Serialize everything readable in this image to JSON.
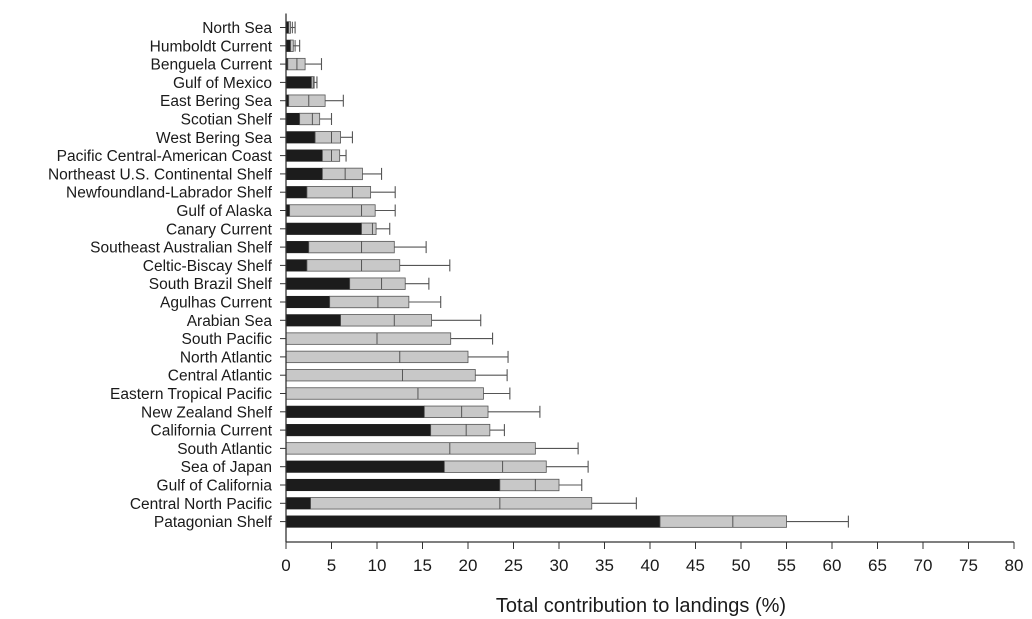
{
  "chart_data": {
    "type": "bar",
    "orientation": "horizontal",
    "stacked": true,
    "xlabel": "Total contribution to landings (%)",
    "ylabel": "",
    "xlim": [
      0,
      80
    ],
    "xticks": [
      0,
      5,
      10,
      15,
      20,
      25,
      30,
      35,
      40,
      45,
      50,
      55,
      60,
      65,
      70,
      75,
      80
    ],
    "grid": false,
    "legend": "none",
    "colors": {
      "dark": "#1c1c1c",
      "light": "#c8c8c8",
      "edge": "#555555",
      "axis": "#333333"
    },
    "categories": [
      "North Sea",
      "Humboldt Current",
      "Benguela Current",
      "Gulf of Mexico",
      "East Bering Sea",
      "Scotian Shelf",
      "West Bering Sea",
      "Pacific Central-American Coast",
      "Northeast U.S. Continental Shelf",
      "Newfoundland-Labrador Shelf",
      "Gulf of Alaska",
      "Canary Current",
      "Southeast Australian Shelf",
      "Celtic-Biscay Shelf",
      "South Brazil Shelf",
      "Agulhas Current",
      "Arabian Sea",
      "South Pacific",
      "North Atlantic",
      "Central Atlantic",
      "Eastern Tropical Pacific",
      "New Zealand Shelf",
      "California Current",
      "South Atlantic",
      "Sea of Japan",
      "Gulf of California",
      "Central North Pacific",
      "Patagonian Shelf"
    ],
    "series": [
      {
        "values": [
          0.3,
          0.5,
          0.2,
          2.8,
          0.3,
          1.5,
          3.2,
          4.0,
          4.0,
          2.3,
          0.4,
          8.3,
          2.5,
          2.3,
          7.0,
          4.8,
          6.0,
          0,
          0,
          0,
          0,
          15.2,
          15.9,
          0,
          17.4,
          23.5,
          2.7,
          41.1
        ]
      },
      {
        "values": [
          0.2,
          0.3,
          1.9,
          0.3,
          4.0,
          2.2,
          2.8,
          1.9,
          4.4,
          7.0,
          9.4,
          1.6,
          9.4,
          10.2,
          6.1,
          8.7,
          10.0,
          18.1,
          20.0,
          20.8,
          21.7,
          7.0,
          6.5,
          27.4,
          11.2,
          6.5,
          30.9,
          13.9
        ]
      }
    ],
    "totals": [
      0.5,
      0.8,
      2.1,
      3.1,
      4.3,
      3.7,
      6.0,
      5.9,
      8.4,
      9.3,
      9.8,
      9.9,
      11.9,
      12.5,
      13.1,
      13.5,
      16.0,
      18.1,
      20.0,
      20.8,
      21.7,
      22.2,
      22.4,
      27.4,
      28.6,
      30.0,
      33.6,
      55.0
    ],
    "inner_marks": [
      0.7,
      1.0,
      1.2,
      3.0,
      2.5,
      2.9,
      5.0,
      5.0,
      6.5,
      7.3,
      8.3,
      9.5,
      8.3,
      8.3,
      10.5,
      10.1,
      11.9,
      10.0,
      12.5,
      12.8,
      14.5,
      19.3,
      19.8,
      18.0,
      23.8,
      27.4,
      23.5,
      49.1
    ],
    "error_upper": [
      1.0,
      1.5,
      3.9,
      3.4,
      6.3,
      5.0,
      7.3,
      6.6,
      10.5,
      12.0,
      12.0,
      11.4,
      15.4,
      18.0,
      15.7,
      17.0,
      21.4,
      22.7,
      24.4,
      24.3,
      24.6,
      27.9,
      24.0,
      32.1,
      33.2,
      32.5,
      38.5,
      61.8
    ]
  }
}
